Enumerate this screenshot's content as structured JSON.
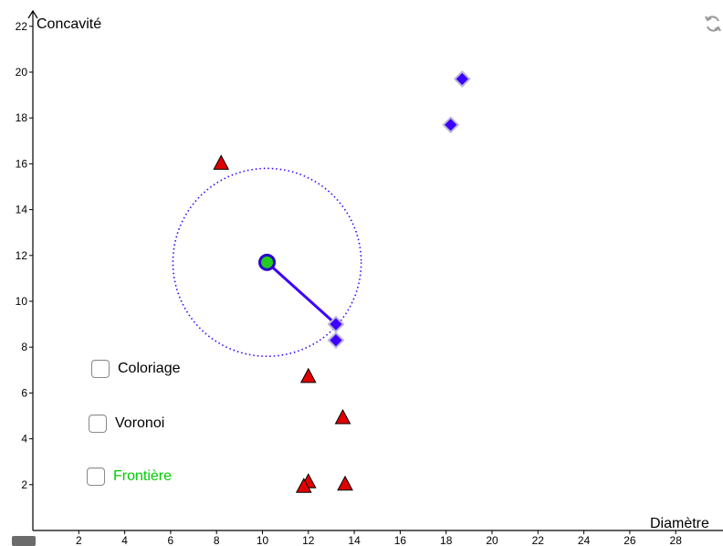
{
  "chart_data": {
    "type": "scatter",
    "xlabel": "Diamètre",
    "ylabel": "Concavité",
    "xlim": [
      0,
      30
    ],
    "ylim": [
      0,
      22.5
    ],
    "x_ticks": [
      2,
      4,
      6,
      8,
      10,
      12,
      14,
      16,
      18,
      20,
      22,
      24,
      26,
      28
    ],
    "y_ticks": [
      2,
      4,
      6,
      8,
      10,
      12,
      14,
      16,
      18,
      20,
      22
    ],
    "series": [
      {
        "marker": "triangle",
        "color": "#e00000",
        "points": [
          [
            8.2,
            16.0
          ],
          [
            12.0,
            6.7
          ],
          [
            13.5,
            4.9
          ],
          [
            12.0,
            2.1
          ],
          [
            11.8,
            1.9
          ],
          [
            13.6,
            2.0
          ]
        ]
      },
      {
        "marker": "diamond",
        "color": "#3d00ff",
        "points": [
          [
            18.7,
            19.7
          ],
          [
            18.2,
            17.7
          ],
          [
            13.2,
            9.0
          ],
          [
            13.2,
            8.3
          ]
        ]
      }
    ],
    "query_point": {
      "x": 10.2,
      "y": 11.7,
      "color": "#22cc22"
    },
    "neighbor_segment": {
      "from": [
        10.2,
        11.7
      ],
      "to": [
        13.2,
        9.0
      ],
      "color": "#3d00ff"
    },
    "circle": {
      "center": [
        10.2,
        11.7
      ],
      "radius": 4.1,
      "color": "#3d00ff",
      "style": "dotted"
    }
  },
  "checkboxes": [
    {
      "label": "Coloriage",
      "color": "#000000",
      "checked": false
    },
    {
      "label": "Voronoi",
      "color": "#000000",
      "checked": false
    },
    {
      "label": "Frontière",
      "color": "#00cc00",
      "checked": false
    }
  ],
  "icons": {
    "refresh": "refresh-icon",
    "corner": "graphics-view-icon"
  }
}
